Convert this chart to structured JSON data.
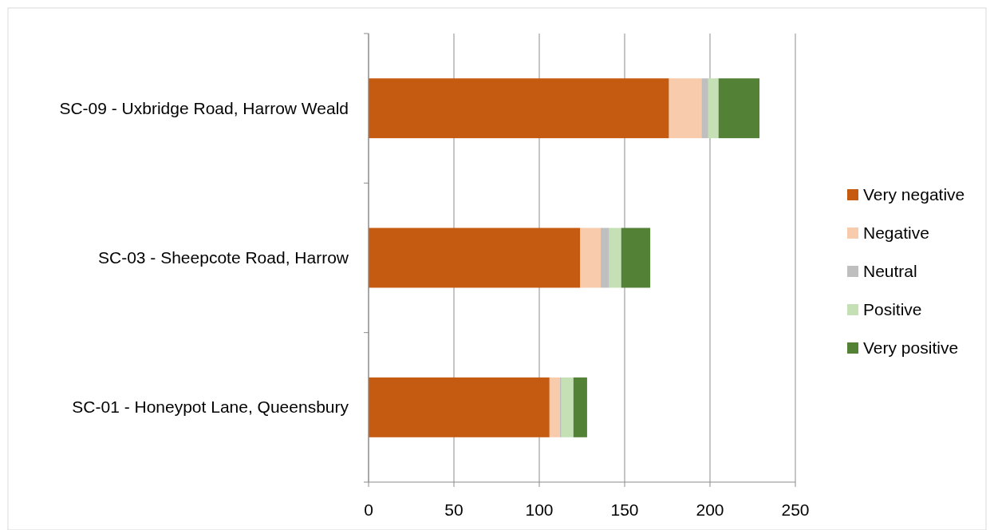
{
  "chart_data": {
    "type": "bar",
    "orientation": "horizontal",
    "stacked": true,
    "categories": [
      "SC-09 - Uxbridge Road, Harrow Weald",
      "SC-03 - Sheepcote Road, Harrow",
      "SC-01 - Honeypot Lane, Queensbury"
    ],
    "series": [
      {
        "name": "Very negative",
        "color": "#c55a11",
        "values": [
          176,
          124,
          106
        ]
      },
      {
        "name": "Negative",
        "color": "#f8cbad",
        "values": [
          19,
          12,
          6
        ]
      },
      {
        "name": "Neutral",
        "color": "#bfbfbf",
        "values": [
          4,
          5,
          1
        ]
      },
      {
        "name": "Positive",
        "color": "#c5e0b4",
        "values": [
          6,
          7,
          7
        ]
      },
      {
        "name": "Very positive",
        "color": "#538135",
        "values": [
          24,
          17,
          8
        ]
      }
    ],
    "xlim": [
      0,
      250
    ],
    "xticks": [
      0,
      50,
      100,
      150,
      200,
      250
    ],
    "grid": "x",
    "legend": "right"
  }
}
